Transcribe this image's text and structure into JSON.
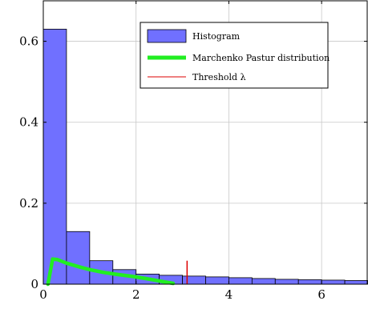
{
  "chart_data": {
    "type": "bar",
    "title": "",
    "xlabel": "",
    "ylabel": "",
    "xlim": [
      0,
      7
    ],
    "ylim": [
      0,
      0.7
    ],
    "xticks": [
      0,
      2,
      4,
      6
    ],
    "yticks": [
      0,
      0.2,
      0.4,
      0.6
    ],
    "grid": true,
    "legend_position": "top-right",
    "histogram": {
      "name": "Histogram",
      "bin_width": 0.5,
      "bin_starts": [
        0,
        0.5,
        1.0,
        1.5,
        2.0,
        2.5,
        3.0,
        3.5,
        4.0,
        4.5,
        5.0,
        5.5,
        6.0,
        6.5
      ],
      "values": [
        0.63,
        0.13,
        0.058,
        0.036,
        0.025,
        0.022,
        0.02,
        0.018,
        0.016,
        0.014,
        0.012,
        0.011,
        0.01,
        0.009
      ],
      "fill": "#7070ff",
      "stroke": "#000000"
    },
    "curve": {
      "name": "Marchenko Pastur distribution",
      "color": "#22ee22",
      "x": [
        0.1,
        0.2,
        0.3,
        0.5,
        0.8,
        1.0,
        1.3,
        1.6,
        2.0,
        2.3,
        2.6,
        2.8
      ],
      "y": [
        0.0,
        0.062,
        0.061,
        0.052,
        0.042,
        0.036,
        0.029,
        0.024,
        0.018,
        0.012,
        0.006,
        0.002
      ]
    },
    "threshold": {
      "name": "Threshold λ",
      "color": "#dd0000",
      "x": 3.1,
      "y_top": 0.058
    },
    "legend": [
      "Histogram",
      "Marchenko Pastur distribution",
      "Threshold λ"
    ]
  }
}
